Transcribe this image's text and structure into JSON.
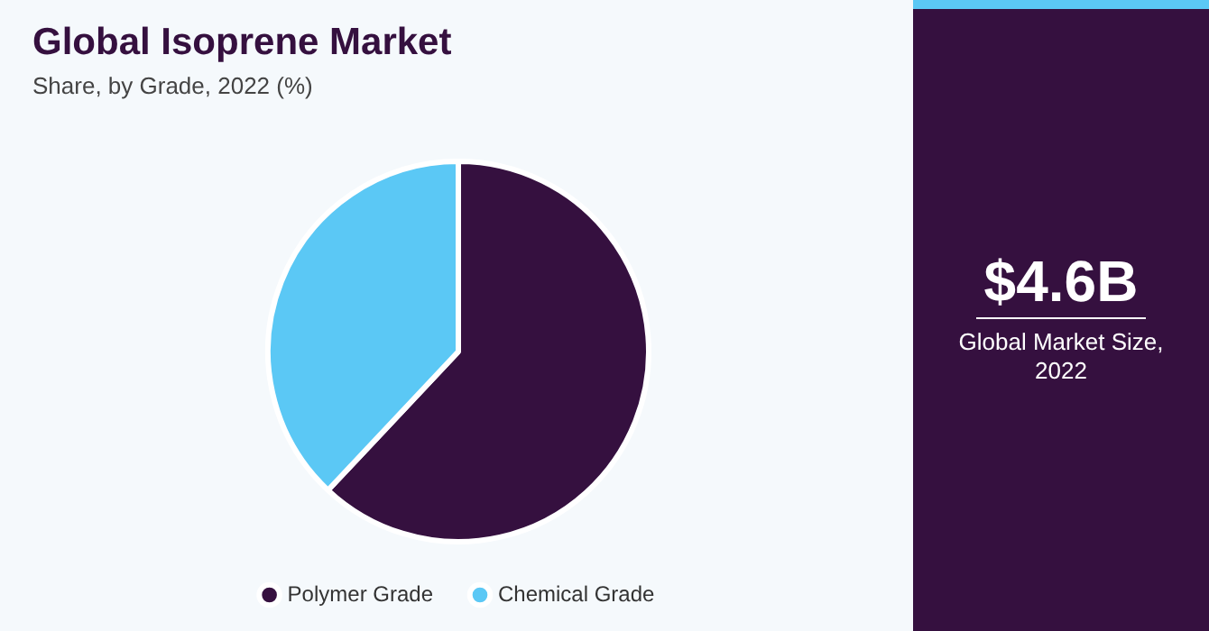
{
  "chart_data": {
    "type": "pie",
    "title": "Global Isoprene Market",
    "subtitle": "Share, by Grade, 2022 (%)",
    "categories": [
      "Polymer Grade",
      "Chemical Grade"
    ],
    "values": [
      62,
      38
    ],
    "colors": [
      "#35103f",
      "#5bc8f5"
    ],
    "legend": "bottom",
    "annotations": [
      "$4.6B",
      "Global Market Size, 2022"
    ]
  }
}
